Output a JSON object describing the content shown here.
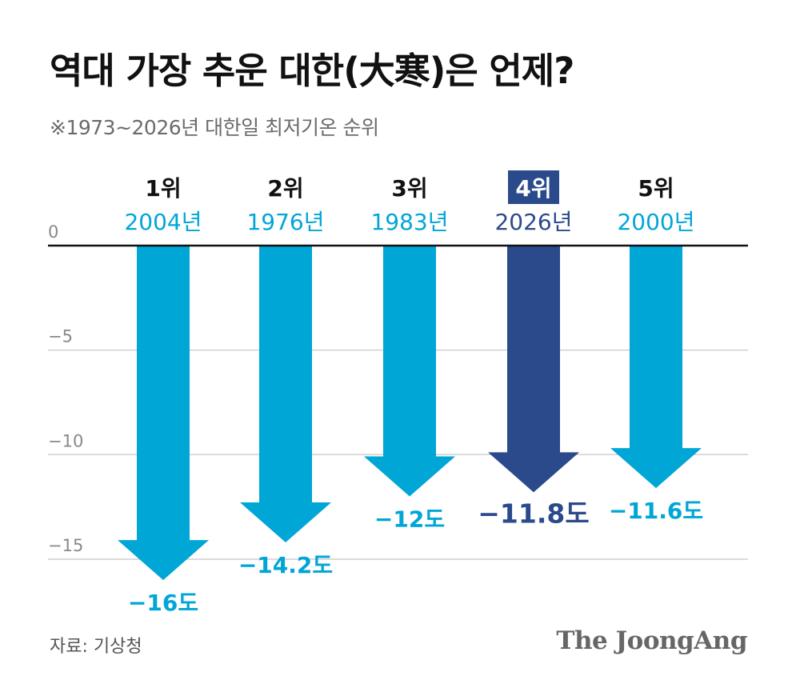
{
  "header": {
    "title": "역대 가장 추운 대한(大寒)은 언제?",
    "subtitle": "※1973~2026년 대한일 최저기온 순위"
  },
  "footer": {
    "source": "자료: 기상청",
    "brand": "The JoongAng"
  },
  "colors": {
    "bar": "#00a6d6",
    "highlight": "#2b4a8b",
    "axis": "#111111",
    "grid": "#cfcfcf",
    "tick": "#888888",
    "rank": "#111111"
  },
  "chart_data": {
    "type": "bar",
    "orientation": "downward-arrows",
    "ylim": [
      -16,
      0
    ],
    "yticks": [
      0,
      -5,
      -10,
      -15
    ],
    "ytick_labels": [
      "0",
      "−5",
      "−10",
      "−15"
    ],
    "grid": true,
    "highlight_index": 3,
    "categories": [
      {
        "rank": "1위",
        "year": "2004년",
        "value": -16,
        "label": "−16도"
      },
      {
        "rank": "2위",
        "year": "1976년",
        "value": -14.2,
        "label": "−14.2도"
      },
      {
        "rank": "3위",
        "year": "1983년",
        "value": -12,
        "label": "−12도"
      },
      {
        "rank": "4위",
        "year": "2026년",
        "value": -11.8,
        "label": "−11.8도"
      },
      {
        "rank": "5위",
        "year": "2000년",
        "value": -11.6,
        "label": "−11.6도"
      }
    ]
  }
}
